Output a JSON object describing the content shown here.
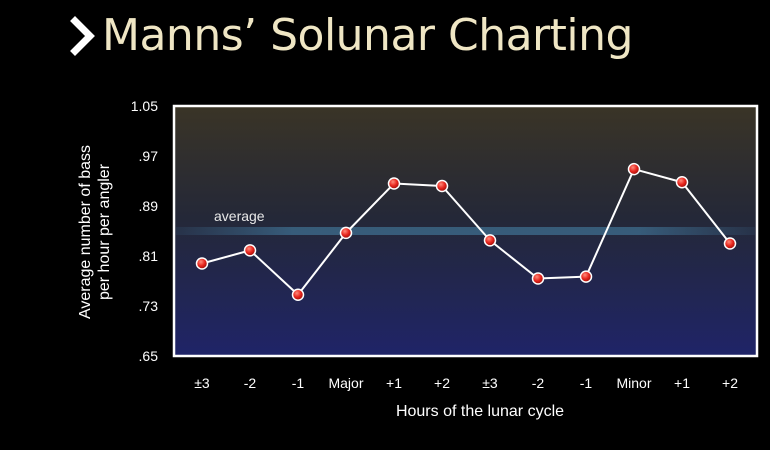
{
  "header": {
    "title": "Manns’ Solunar Charting"
  },
  "chart_data": {
    "type": "line",
    "title": "Manns’ Solunar Charting",
    "xlabel": "Hours of the lunar cycle",
    "ylabel_lines": [
      "Average number of bass",
      "per hour per angler"
    ],
    "categories": [
      "±3",
      "-2",
      "-1",
      "Major",
      "+1",
      "+2",
      "±3",
      "-2",
      "-1",
      "Minor",
      "+1",
      "+2"
    ],
    "series": [
      {
        "values": [
          0.798,
          0.819,
          0.748,
          0.847,
          0.926,
          0.922,
          0.835,
          0.774,
          0.777,
          0.949,
          0.928,
          0.83
        ]
      }
    ],
    "reference_line": {
      "label": "average",
      "value": 0.85
    },
    "ylim": [
      0.65,
      1.05
    ],
    "yticks": [
      0.65,
      0.73,
      0.81,
      0.89,
      0.97,
      1.05
    ],
    "ytick_labels": [
      ".65",
      ".73",
      ".81",
      ".89",
      ".97",
      "1.05"
    ],
    "grid": false,
    "colors": {
      "line": "#ffffff",
      "marker": "#e8261e",
      "plot_top": "#3a3426",
      "plot_bottom": "#1f2468",
      "reference": "#4f9bc4",
      "title": "#efe6c4"
    }
  }
}
